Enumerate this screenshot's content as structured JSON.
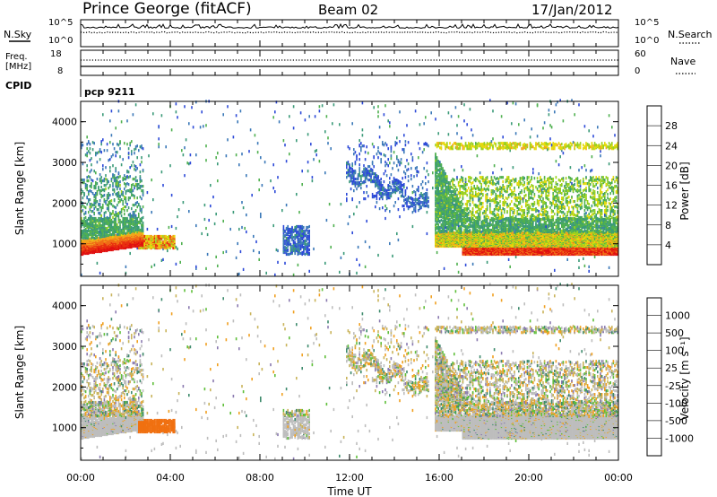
{
  "header": {
    "station": "Prince George (fitACF)",
    "beam": "Beam 02",
    "date": "17/Jan/2012"
  },
  "noise_panel": {
    "left_label": "N.Sky",
    "right_label": "N.Search",
    "left_ticks": [
      "10^5",
      "10^0"
    ],
    "right_ticks": [
      "10^5",
      "10^0"
    ]
  },
  "freq_panel": {
    "left_label_1": "Freq.",
    "left_label_2": "[MHz]",
    "right_label": "Nave",
    "left_ticks": [
      "18",
      "8"
    ],
    "right_ticks": [
      "60",
      "0"
    ]
  },
  "cpid": {
    "label": "CPID",
    "value": "pcp 9211"
  },
  "x_axis": {
    "label": "Time UT",
    "ticks": [
      "00:00",
      "04:00",
      "08:00",
      "12:00",
      "16:00",
      "20:00",
      "00:00"
    ]
  },
  "chart_data": [
    {
      "type": "heatmap",
      "name": "power",
      "xlabel": "Time UT",
      "ylabel": "Slant Range [km]",
      "y_ticks": [
        "1000",
        "2000",
        "3000",
        "4000"
      ],
      "ylim": [
        200,
        4500
      ],
      "xlim": [
        "00:00",
        "24:00"
      ],
      "colorbar": {
        "label": "Power [dB]",
        "ticks": [
          "4",
          "8",
          "12",
          "16",
          "20",
          "24",
          "28"
        ],
        "range": [
          0,
          30
        ],
        "colors": [
          "#1010e0",
          "#2c49d8",
          "#3a78b8",
          "#3a9a78",
          "#4fb04f",
          "#9ad11f",
          "#e6d90a",
          "#f2a51c",
          "#f06d17",
          "#e8300f",
          "#e01010"
        ]
      }
    },
    {
      "type": "heatmap",
      "name": "velocity",
      "xlabel": "Time UT",
      "ylabel": "Slant Range [km]",
      "y_ticks": [
        "1000",
        "2000",
        "3000",
        "4000"
      ],
      "ylim": [
        200,
        4500
      ],
      "xlim": [
        "00:00",
        "24:00"
      ],
      "colorbar": {
        "label": "Velocity [m s⁻¹]",
        "ticks": [
          "1000",
          "500",
          "100",
          "25",
          "-25",
          "-100",
          "-500",
          "-1000"
        ],
        "colors": [
          "#2b3fd0",
          "#3f6aa8",
          "#3d8a6c",
          "#5fbf3a",
          "#bdbdbd",
          "#bdbdbd",
          "#f0a020",
          "#f07010",
          "#e83010",
          "#e01010"
        ]
      }
    }
  ]
}
